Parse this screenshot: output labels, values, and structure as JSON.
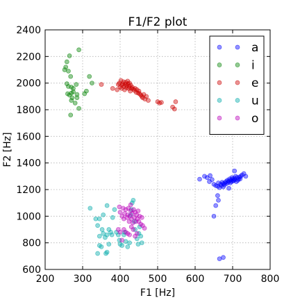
{
  "chart_data": {
    "type": "scatter",
    "title": "F1/F2 plot",
    "xlabel": "F1 [Hz]",
    "ylabel": "F2 [Hz]",
    "xlim": [
      200,
      800
    ],
    "ylim": [
      600,
      2400
    ],
    "xticks": [
      200,
      300,
      400,
      500,
      600,
      700,
      800
    ],
    "yticks": [
      600,
      800,
      1000,
      1200,
      1400,
      1600,
      1800,
      2000,
      2200,
      2400
    ],
    "grid": true,
    "legend_position": "top-right",
    "series": [
      {
        "name": "a",
        "color": "#0000ff",
        "points": [
          [
            612,
            1278
          ],
          [
            625,
            1300
          ],
          [
            632,
            1290
          ],
          [
            638,
            1260
          ],
          [
            640,
            1305
          ],
          [
            645,
            1275
          ],
          [
            650,
            1240
          ],
          [
            655,
            1230
          ],
          [
            660,
            1225
          ],
          [
            662,
            1250
          ],
          [
            665,
            1215
          ],
          [
            668,
            1240
          ],
          [
            670,
            1230
          ],
          [
            672,
            1255
          ],
          [
            675,
            1245
          ],
          [
            678,
            1235
          ],
          [
            680,
            1250
          ],
          [
            682,
            1260
          ],
          [
            684,
            1245
          ],
          [
            686,
            1270
          ],
          [
            688,
            1255
          ],
          [
            690,
            1265
          ],
          [
            692,
            1280
          ],
          [
            694,
            1250
          ],
          [
            695,
            1270
          ],
          [
            697,
            1260
          ],
          [
            698,
            1290
          ],
          [
            700,
            1280
          ],
          [
            702,
            1265
          ],
          [
            703,
            1270
          ],
          [
            705,
            1285
          ],
          [
            706,
            1275
          ],
          [
            708,
            1300
          ],
          [
            710,
            1260
          ],
          [
            712,
            1290
          ],
          [
            714,
            1270
          ],
          [
            716,
            1280
          ],
          [
            718,
            1295
          ],
          [
            720,
            1280
          ],
          [
            722,
            1300
          ],
          [
            725,
            1310
          ],
          [
            730,
            1320
          ],
          [
            735,
            1300
          ],
          [
            705,
            1340
          ],
          [
            690,
            1210
          ],
          [
            675,
            1220
          ],
          [
            660,
            1155
          ],
          [
            662,
            1120
          ],
          [
            655,
            1080
          ],
          [
            650,
            1000
          ],
          [
            665,
            680
          ],
          [
            675,
            690
          ]
        ]
      },
      {
        "name": "i",
        "color": "#008000",
        "points": [
          [
            252,
            2100
          ],
          [
            255,
            2120
          ],
          [
            258,
            2160
          ],
          [
            265,
            2205
          ],
          [
            290,
            2250
          ],
          [
            262,
            2090
          ],
          [
            268,
            2050
          ],
          [
            258,
            1995
          ],
          [
            262,
            1975
          ],
          [
            270,
            1970
          ],
          [
            275,
            1960
          ],
          [
            283,
            1990
          ],
          [
            260,
            1920
          ],
          [
            265,
            1910
          ],
          [
            270,
            1925
          ],
          [
            275,
            1935
          ],
          [
            285,
            1915
          ],
          [
            272,
            1890
          ],
          [
            285,
            1890
          ],
          [
            270,
            1870
          ],
          [
            280,
            1850
          ],
          [
            290,
            1810
          ],
          [
            268,
            1760
          ],
          [
            305,
            1920
          ],
          [
            310,
            1940
          ],
          [
            318,
            2050
          ],
          [
            325,
            2000
          ]
        ]
      },
      {
        "name": "e",
        "color": "#cc0000",
        "points": [
          [
            395,
            1990
          ],
          [
            398,
            2000
          ],
          [
            400,
            1970
          ],
          [
            402,
            2020
          ],
          [
            404,
            1960
          ],
          [
            405,
            1985
          ],
          [
            407,
            1995
          ],
          [
            409,
            2010
          ],
          [
            410,
            1975
          ],
          [
            412,
            1950
          ],
          [
            414,
            1990
          ],
          [
            415,
            2005
          ],
          [
            417,
            1965
          ],
          [
            418,
            1980
          ],
          [
            420,
            2015
          ],
          [
            421,
            1995
          ],
          [
            423,
            1960
          ],
          [
            424,
            1975
          ],
          [
            425,
            2000
          ],
          [
            427,
            1940
          ],
          [
            428,
            1985
          ],
          [
            430,
            1960
          ],
          [
            432,
            1970
          ],
          [
            435,
            1955
          ],
          [
            438,
            1945
          ],
          [
            440,
            1960
          ],
          [
            443,
            1930
          ],
          [
            445,
            1950
          ],
          [
            448,
            1925
          ],
          [
            450,
            1940
          ],
          [
            452,
            1920
          ],
          [
            455,
            1910
          ],
          [
            458,
            1900
          ],
          [
            460,
            1890
          ],
          [
            463,
            1915
          ],
          [
            466,
            1880
          ],
          [
            470,
            1900
          ],
          [
            475,
            1870
          ],
          [
            500,
            1860
          ],
          [
            505,
            1850
          ],
          [
            510,
            1855
          ],
          [
            540,
            1820
          ],
          [
            545,
            1805
          ],
          [
            548,
            1860
          ],
          [
            350,
            1990
          ],
          [
            380,
            1960
          ],
          [
            392,
            1950
          ]
        ]
      },
      {
        "name": "u",
        "color": "#00aaaa",
        "points": [
          [
            320,
            1060
          ],
          [
            335,
            980
          ],
          [
            345,
            980
          ],
          [
            340,
            930
          ],
          [
            355,
            1010
          ],
          [
            352,
            900
          ],
          [
            355,
            870
          ],
          [
            345,
            850
          ],
          [
            365,
            860
          ],
          [
            360,
            840
          ],
          [
            370,
            790
          ],
          [
            345,
            780
          ],
          [
            350,
            770
          ],
          [
            365,
            730
          ],
          [
            362,
            720
          ],
          [
            340,
            720
          ],
          [
            370,
            900
          ],
          [
            375,
            880
          ],
          [
            378,
            860
          ],
          [
            380,
            990
          ],
          [
            385,
            1050
          ],
          [
            390,
            880
          ],
          [
            395,
            860
          ],
          [
            398,
            820
          ],
          [
            400,
            790
          ],
          [
            405,
            780
          ],
          [
            410,
            860
          ],
          [
            412,
            880
          ],
          [
            415,
            810
          ],
          [
            420,
            770
          ],
          [
            425,
            800
          ],
          [
            428,
            1010
          ],
          [
            430,
            1050
          ],
          [
            432,
            1100
          ],
          [
            435,
            1120
          ],
          [
            438,
            960
          ],
          [
            440,
            900
          ],
          [
            445,
            830
          ],
          [
            448,
            790
          ],
          [
            450,
            870
          ],
          [
            452,
            920
          ],
          [
            455,
            850
          ],
          [
            458,
            800
          ],
          [
            365,
            1080
          ]
        ]
      },
      {
        "name": "o",
        "color": "#bb00bb",
        "points": [
          [
            400,
            1030
          ],
          [
            405,
            1000
          ],
          [
            408,
            1060
          ],
          [
            410,
            980
          ],
          [
            412,
            1020
          ],
          [
            415,
            1050
          ],
          [
            418,
            990
          ],
          [
            420,
            1010
          ],
          [
            422,
            1060
          ],
          [
            424,
            960
          ],
          [
            426,
            1000
          ],
          [
            428,
            1040
          ],
          [
            430,
            980
          ],
          [
            432,
            1020
          ],
          [
            434,
            950
          ],
          [
            436,
            1050
          ],
          [
            438,
            990
          ],
          [
            440,
            1030
          ],
          [
            442,
            960
          ],
          [
            444,
            1010
          ],
          [
            446,
            980
          ],
          [
            448,
            1040
          ],
          [
            450,
            960
          ],
          [
            452,
            1000
          ],
          [
            455,
            940
          ],
          [
            458,
            990
          ],
          [
            460,
            930
          ],
          [
            465,
            910
          ],
          [
            410,
            900
          ],
          [
            415,
            880
          ],
          [
            420,
            870
          ],
          [
            425,
            860
          ],
          [
            430,
            920
          ],
          [
            435,
            900
          ],
          [
            440,
            850
          ],
          [
            445,
            870
          ],
          [
            395,
            900
          ],
          [
            400,
            880
          ],
          [
            405,
            820
          ],
          [
            398,
            1070
          ],
          [
            428,
            1085
          ]
        ]
      }
    ]
  }
}
